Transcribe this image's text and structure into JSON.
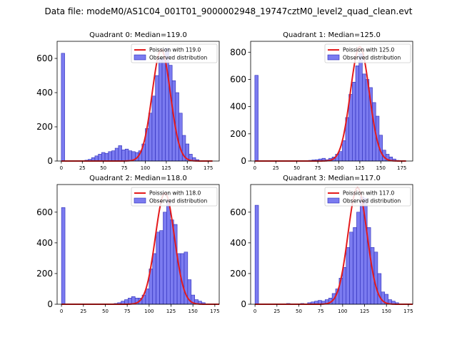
{
  "figure": {
    "title": "Data file: modeM0/AS1C04_001T01_9000002948_19747cztM0_level2_quad_clean.evt"
  },
  "legend": {
    "observed_label": "Observed distribution"
  },
  "colors": {
    "bar_fill": "#7b7bf0",
    "bar_edge": "#2b2bb8",
    "curve": "#e41a1c",
    "axes": "#000000"
  },
  "chart_data": [
    {
      "type": "bar",
      "title": "Quadrant 0: Median=119.0",
      "poisson_label": "Poission with 119.0",
      "mean": 119.0,
      "peak": 650,
      "bin_width": 4,
      "xlim": [
        -5,
        188
      ],
      "ylim": [
        0,
        700
      ],
      "xticks": [
        0,
        25,
        50,
        75,
        100,
        125,
        150,
        175
      ],
      "yticks": [
        0,
        200,
        400,
        600
      ],
      "bins": [
        [
          0,
          630
        ],
        [
          28,
          5
        ],
        [
          32,
          10
        ],
        [
          36,
          20
        ],
        [
          40,
          30
        ],
        [
          44,
          40
        ],
        [
          48,
          50
        ],
        [
          52,
          45
        ],
        [
          56,
          55
        ],
        [
          60,
          60
        ],
        [
          64,
          75
        ],
        [
          68,
          90
        ],
        [
          72,
          65
        ],
        [
          76,
          70
        ],
        [
          80,
          60
        ],
        [
          84,
          55
        ],
        [
          88,
          50
        ],
        [
          92,
          60
        ],
        [
          96,
          100
        ],
        [
          100,
          190
        ],
        [
          104,
          280
        ],
        [
          108,
          380
        ],
        [
          112,
          500
        ],
        [
          116,
          600
        ],
        [
          120,
          600
        ],
        [
          124,
          660
        ],
        [
          128,
          560
        ],
        [
          132,
          470
        ],
        [
          136,
          400
        ],
        [
          140,
          280
        ],
        [
          144,
          150
        ],
        [
          148,
          100
        ],
        [
          152,
          40
        ],
        [
          156,
          20
        ],
        [
          160,
          8
        ]
      ]
    },
    {
      "type": "bar",
      "title": "Quadrant 1: Median=125.0",
      "poisson_label": "Poission with 125.0",
      "mean": 125.0,
      "peak": 840,
      "bin_width": 4,
      "xlim": [
        -5,
        188
      ],
      "ylim": [
        0,
        880
      ],
      "xticks": [
        0,
        25,
        50,
        75,
        100,
        125,
        150,
        175
      ],
      "yticks": [
        0,
        200,
        400,
        600,
        800
      ],
      "bins": [
        [
          0,
          630
        ],
        [
          64,
          5
        ],
        [
          68,
          8
        ],
        [
          72,
          10
        ],
        [
          76,
          15
        ],
        [
          80,
          20
        ],
        [
          84,
          10
        ],
        [
          88,
          20
        ],
        [
          92,
          30
        ],
        [
          96,
          50
        ],
        [
          100,
          70
        ],
        [
          104,
          150
        ],
        [
          108,
          320
        ],
        [
          112,
          490
        ],
        [
          116,
          580
        ],
        [
          120,
          700
        ],
        [
          124,
          790
        ],
        [
          128,
          640
        ],
        [
          132,
          600
        ],
        [
          136,
          540
        ],
        [
          140,
          430
        ],
        [
          144,
          330
        ],
        [
          148,
          190
        ],
        [
          152,
          80
        ],
        [
          156,
          50
        ],
        [
          160,
          30
        ],
        [
          164,
          15
        ],
        [
          168,
          5
        ]
      ]
    },
    {
      "type": "bar",
      "title": "Quadrant 2: Median=118.0",
      "poisson_label": "Poission with 118.0",
      "mean": 118.0,
      "peak": 725,
      "bin_width": 4,
      "xlim": [
        -5,
        180
      ],
      "ylim": [
        0,
        780
      ],
      "xticks": [
        0,
        25,
        50,
        75,
        100,
        125,
        150,
        175
      ],
      "yticks": [
        0,
        200,
        400,
        600
      ],
      "bins": [
        [
          0,
          630
        ],
        [
          60,
          5
        ],
        [
          64,
          10
        ],
        [
          68,
          20
        ],
        [
          72,
          30
        ],
        [
          76,
          40
        ],
        [
          80,
          50
        ],
        [
          84,
          40
        ],
        [
          88,
          40
        ],
        [
          92,
          60
        ],
        [
          96,
          100
        ],
        [
          100,
          230
        ],
        [
          104,
          330
        ],
        [
          108,
          470
        ],
        [
          112,
          480
        ],
        [
          116,
          600
        ],
        [
          120,
          680
        ],
        [
          124,
          550
        ],
        [
          128,
          520
        ],
        [
          132,
          330
        ],
        [
          136,
          330
        ],
        [
          140,
          340
        ],
        [
          144,
          160
        ],
        [
          148,
          60
        ],
        [
          152,
          30
        ],
        [
          156,
          20
        ],
        [
          160,
          10
        ]
      ]
    },
    {
      "type": "bar",
      "title": "Quadrant 3: Median=117.0",
      "poisson_label": "Poission with 117.0",
      "mean": 117.0,
      "peak": 760,
      "bin_width": 4,
      "xlim": [
        -5,
        180
      ],
      "ylim": [
        0,
        780
      ],
      "xticks": [
        0,
        25,
        50,
        75,
        100,
        125,
        150,
        175
      ],
      "yticks": [
        0,
        200,
        400,
        600
      ],
      "bins": [
        [
          0,
          645
        ],
        [
          36,
          5
        ],
        [
          52,
          5
        ],
        [
          60,
          10
        ],
        [
          64,
          15
        ],
        [
          68,
          20
        ],
        [
          72,
          25
        ],
        [
          76,
          20
        ],
        [
          80,
          30
        ],
        [
          84,
          40
        ],
        [
          88,
          70
        ],
        [
          92,
          100
        ],
        [
          96,
          170
        ],
        [
          100,
          240
        ],
        [
          104,
          370
        ],
        [
          108,
          470
        ],
        [
          112,
          500
        ],
        [
          116,
          600
        ],
        [
          120,
          700
        ],
        [
          124,
          690
        ],
        [
          128,
          500
        ],
        [
          132,
          370
        ],
        [
          136,
          340
        ],
        [
          140,
          200
        ],
        [
          144,
          80
        ],
        [
          148,
          65
        ],
        [
          152,
          30
        ],
        [
          156,
          20
        ],
        [
          160,
          10
        ]
      ]
    }
  ]
}
